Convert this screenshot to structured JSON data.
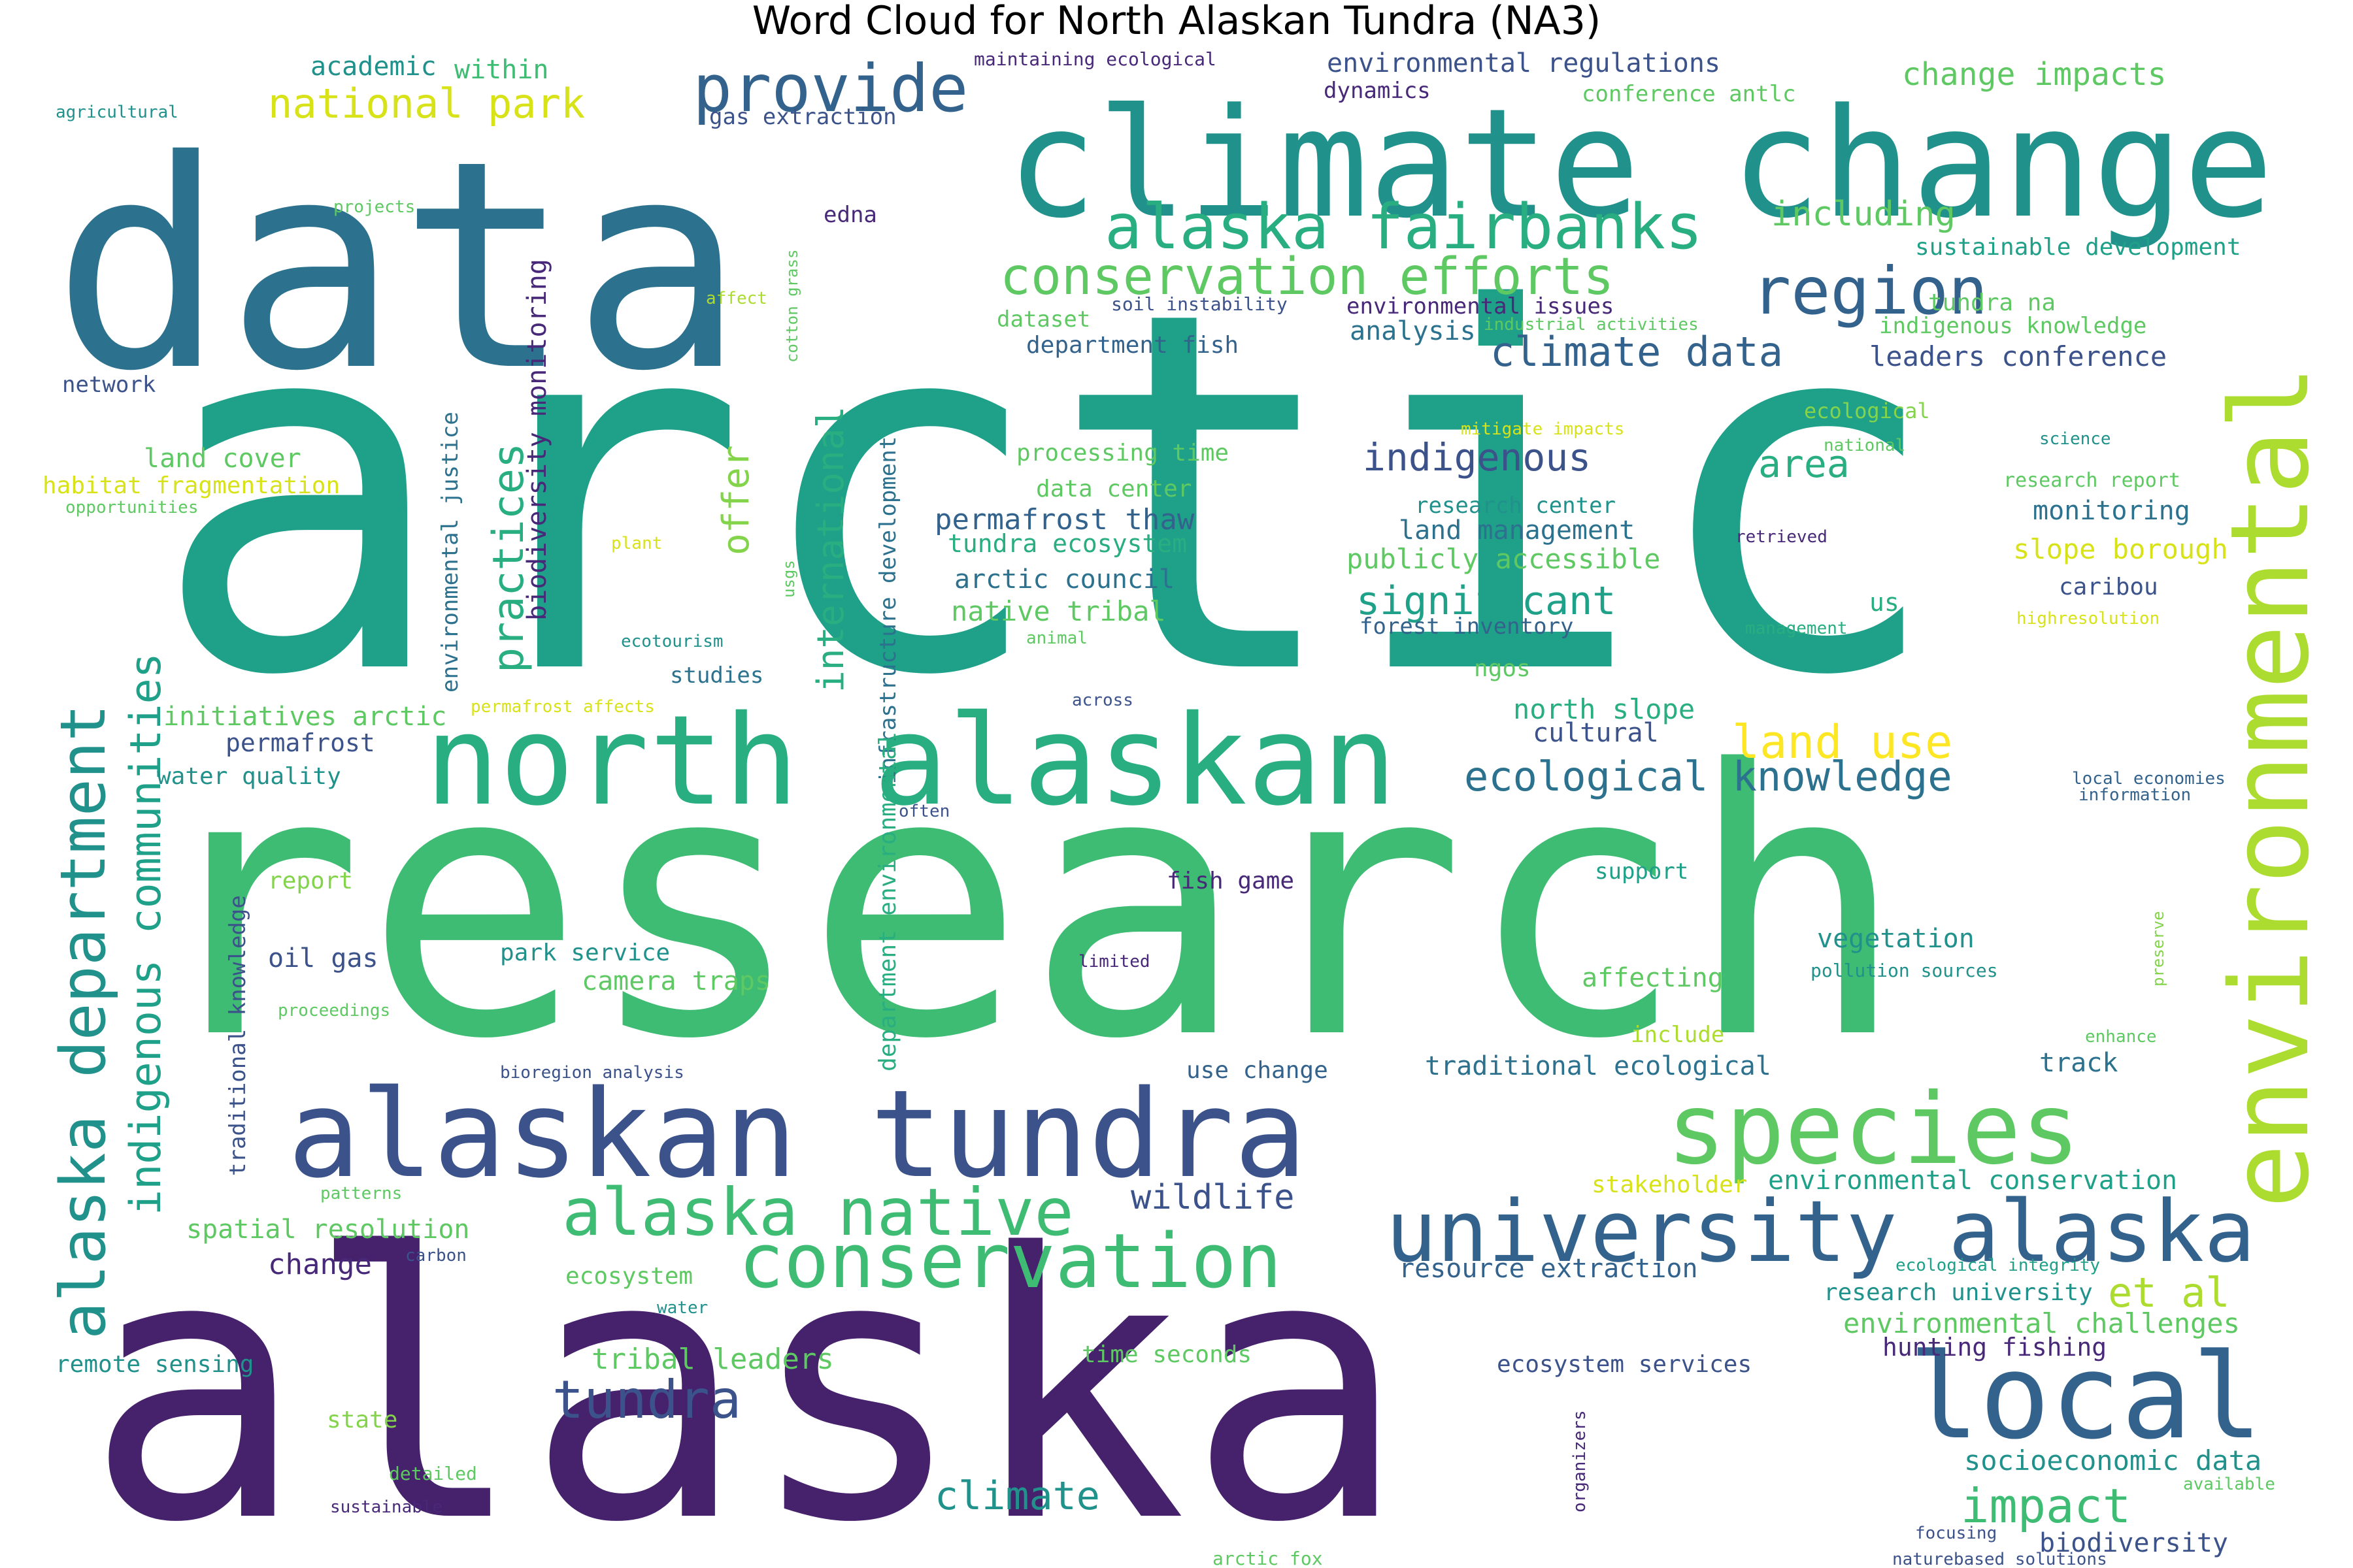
{
  "title": "Word Cloud for North Alaskan Tundra (NA3)",
  "palette": {
    "purple_dark": "#46216c",
    "purple": "#482878",
    "indigo": "#3b528b",
    "blue": "#33638d",
    "steel": "#2c728e",
    "teal": "#21918c",
    "teal_light": "#1fa088",
    "green": "#28ae80",
    "green_mid": "#3fbc73",
    "green_light": "#5ec962",
    "lime": "#84d44b",
    "yellow_green": "#addc30",
    "yellow": "#d8e219",
    "yellow_bright": "#fde725"
  },
  "words": [
    {
      "text": "arctic",
      "color": "teal_light"
    },
    {
      "text": "research",
      "color": "green_mid"
    },
    {
      "text": "alaska",
      "color": "purple_dark"
    },
    {
      "text": "data",
      "color": "steel"
    },
    {
      "text": "climate change",
      "color": "teal"
    },
    {
      "text": "environmental",
      "color": "yellow_green"
    },
    {
      "text": "north alaskan",
      "color": "green"
    },
    {
      "text": "alaskan tundra",
      "color": "indigo"
    },
    {
      "text": "species",
      "color": "green_light"
    },
    {
      "text": "local",
      "color": "blue"
    },
    {
      "text": "university alaska",
      "color": "blue"
    },
    {
      "text": "conservation",
      "color": "green_mid"
    },
    {
      "text": "alaska native",
      "color": "green_mid"
    },
    {
      "text": "alaska department",
      "color": "teal"
    },
    {
      "text": "region",
      "color": "blue"
    },
    {
      "text": "provide",
      "color": "blue"
    },
    {
      "text": "alaska fairbanks",
      "color": "green"
    },
    {
      "text": "conservation efforts",
      "color": "green_light"
    },
    {
      "text": "indigenous communities",
      "color": "teal_light"
    },
    {
      "text": "practices",
      "color": "green"
    },
    {
      "text": "ecological knowledge",
      "color": "steel"
    },
    {
      "text": "tundra",
      "color": "indigo"
    },
    {
      "text": "impact",
      "color": "green_mid"
    },
    {
      "text": "et al",
      "color": "yellow_green"
    },
    {
      "text": "land use",
      "color": "yellow_bright"
    },
    {
      "text": "climate data",
      "color": "blue"
    },
    {
      "text": "national park",
      "color": "yellow"
    },
    {
      "text": "significant",
      "color": "teal_light"
    },
    {
      "text": "indigenous",
      "color": "indigo"
    },
    {
      "text": "international",
      "color": "green"
    },
    {
      "text": "climate",
      "color": "teal"
    },
    {
      "text": "wildlife",
      "color": "indigo"
    },
    {
      "text": "area",
      "color": "green"
    },
    {
      "text": "offer",
      "color": "lime"
    },
    {
      "text": "including",
      "color": "green_light"
    },
    {
      "text": "change impacts",
      "color": "green_light"
    },
    {
      "text": "permafrost thaw",
      "color": "blue"
    },
    {
      "text": "biodiversity monitoring",
      "color": "purple"
    },
    {
      "text": "environmental regulations",
      "color": "indigo"
    },
    {
      "text": "tribal leaders",
      "color": "green_light"
    },
    {
      "text": "socioeconomic data",
      "color": "teal"
    },
    {
      "text": "environmental challenges",
      "color": "green_light"
    },
    {
      "text": "leaders conference",
      "color": "indigo"
    },
    {
      "text": "academic",
      "color": "teal"
    },
    {
      "text": "within",
      "color": "green_mid"
    },
    {
      "text": "gas extraction",
      "color": "indigo"
    },
    {
      "text": "maintaining ecological",
      "color": "purple"
    },
    {
      "text": "dynamics",
      "color": "purple"
    },
    {
      "text": "conference antlc",
      "color": "green_light"
    },
    {
      "text": "agricultural",
      "color": "teal"
    },
    {
      "text": "projects",
      "color": "green_light"
    },
    {
      "text": "edna",
      "color": "purple"
    },
    {
      "text": "sustainable development",
      "color": "teal_light"
    },
    {
      "text": "affect",
      "color": "yellow_green"
    },
    {
      "text": "cotton grass",
      "color": "green_light"
    },
    {
      "text": "soil instability",
      "color": "indigo"
    },
    {
      "text": "environmental issues",
      "color": "purple"
    },
    {
      "text": "industrial activities",
      "color": "green_light"
    },
    {
      "text": "tundra na",
      "color": "green_light"
    },
    {
      "text": "indigenous knowledge",
      "color": "green_light"
    },
    {
      "text": "dataset",
      "color": "green_light"
    },
    {
      "text": "analysis",
      "color": "steel"
    },
    {
      "text": "department fish",
      "color": "blue"
    },
    {
      "text": "network",
      "color": "indigo"
    },
    {
      "text": "mitigate impacts",
      "color": "yellow"
    },
    {
      "text": "ecological",
      "color": "lime"
    },
    {
      "text": "national",
      "color": "green_light"
    },
    {
      "text": "science",
      "color": "teal"
    },
    {
      "text": "research report",
      "color": "green_light"
    },
    {
      "text": "land cover",
      "color": "green_light"
    },
    {
      "text": "processing time",
      "color": "green_light"
    },
    {
      "text": "habitat fragmentation",
      "color": "yellow"
    },
    {
      "text": "opportunities",
      "color": "green_light"
    },
    {
      "text": "environmental justice",
      "color": "steel"
    },
    {
      "text": "data center",
      "color": "green_light"
    },
    {
      "text": "research center",
      "color": "teal"
    },
    {
      "text": "monitoring",
      "color": "steel"
    },
    {
      "text": "land management",
      "color": "steel"
    },
    {
      "text": "plant",
      "color": "yellow"
    },
    {
      "text": "usgs",
      "color": "green_light"
    },
    {
      "text": "tundra ecosystem",
      "color": "green"
    },
    {
      "text": "retrieved",
      "color": "purple"
    },
    {
      "text": "slope borough",
      "color": "yellow"
    },
    {
      "text": "publicly accessible",
      "color": "green_light"
    },
    {
      "text": "arctic council",
      "color": "steel"
    },
    {
      "text": "caribou",
      "color": "indigo"
    },
    {
      "text": "native tribal",
      "color": "green_light"
    },
    {
      "text": "us",
      "color": "green"
    },
    {
      "text": "highresolution",
      "color": "yellow"
    },
    {
      "text": "forest inventory",
      "color": "blue"
    },
    {
      "text": "management",
      "color": "green"
    },
    {
      "text": "ecotourism",
      "color": "teal"
    },
    {
      "text": "animal",
      "color": "green_light"
    },
    {
      "text": "studies",
      "color": "steel"
    },
    {
      "text": "infrastructure development",
      "color": "steel"
    },
    {
      "text": "ngos",
      "color": "green_light"
    },
    {
      "text": "initiatives arctic",
      "color": "green_light"
    },
    {
      "text": "permafrost affects",
      "color": "yellow"
    },
    {
      "text": "across",
      "color": "indigo"
    },
    {
      "text": "north slope",
      "color": "green"
    },
    {
      "text": "cultural",
      "color": "indigo"
    },
    {
      "text": "permafrost",
      "color": "indigo"
    },
    {
      "text": "water quality",
      "color": "teal"
    },
    {
      "text": "often",
      "color": "indigo"
    },
    {
      "text": "department environmental",
      "color": "green"
    },
    {
      "text": "local economies",
      "color": "blue"
    },
    {
      "text": "information",
      "color": "blue"
    },
    {
      "text": "report",
      "color": "lime"
    },
    {
      "text": "fish game",
      "color": "purple"
    },
    {
      "text": "support",
      "color": "teal_light"
    },
    {
      "text": "preserve",
      "color": "lime"
    },
    {
      "text": "oil gas",
      "color": "indigo"
    },
    {
      "text": "park service",
      "color": "teal"
    },
    {
      "text": "limited",
      "color": "purple"
    },
    {
      "text": "vegetation",
      "color": "teal"
    },
    {
      "text": "traditional knowledge",
      "color": "indigo"
    },
    {
      "text": "camera traps",
      "color": "green_light"
    },
    {
      "text": "pollution sources",
      "color": "teal"
    },
    {
      "text": "affecting",
      "color": "green_light"
    },
    {
      "text": "proceedings",
      "color": "green_light"
    },
    {
      "text": "include",
      "color": "yellow_green"
    },
    {
      "text": "enhance",
      "color": "green_light"
    },
    {
      "text": "bioregion analysis",
      "color": "indigo"
    },
    {
      "text": "use change",
      "color": "blue"
    },
    {
      "text": "traditional ecological",
      "color": "steel"
    },
    {
      "text": "track",
      "color": "steel"
    },
    {
      "text": "environmental conservation",
      "color": "teal_light"
    },
    {
      "text": "patterns",
      "color": "green_light"
    },
    {
      "text": "stakeholder",
      "color": "yellow"
    },
    {
      "text": "spatial resolution",
      "color": "green_light"
    },
    {
      "text": "carbon",
      "color": "indigo"
    },
    {
      "text": "change",
      "color": "purple"
    },
    {
      "text": "resource extraction",
      "color": "blue"
    },
    {
      "text": "ecological integrity",
      "color": "teal_light"
    },
    {
      "text": "ecosystem",
      "color": "green_light"
    },
    {
      "text": "research university",
      "color": "teal"
    },
    {
      "text": "water",
      "color": "teal"
    },
    {
      "text": "hunting fishing",
      "color": "purple"
    },
    {
      "text": "remote sensing",
      "color": "teal"
    },
    {
      "text": "time seconds",
      "color": "green_light"
    },
    {
      "text": "ecosystem services",
      "color": "indigo"
    },
    {
      "text": "state",
      "color": "lime"
    },
    {
      "text": "organizers",
      "color": "purple"
    },
    {
      "text": "detailed",
      "color": "green_light"
    },
    {
      "text": "available",
      "color": "green_light"
    },
    {
      "text": "sustainable",
      "color": "purple"
    },
    {
      "text": "biodiversity",
      "color": "indigo"
    },
    {
      "text": "focusing",
      "color": "indigo"
    },
    {
      "text": "arctic fox",
      "color": "green_light"
    },
    {
      "text": "naturebased solutions",
      "color": "indigo"
    }
  ]
}
